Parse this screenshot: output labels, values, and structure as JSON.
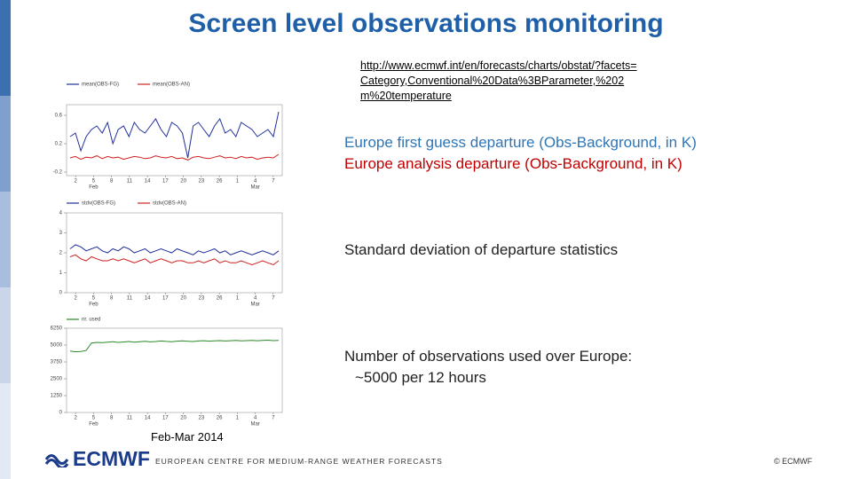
{
  "title": "Screen level observations monitoring",
  "link": "http://www.ecmwf.int/en/forecasts/charts/obstat/?facets=Category,Conventional%20Data%3BParameter,%202m%20temperature",
  "captions": [
    {
      "text": "Europe first guess departure (Obs-Background, in K)",
      "color": "#2e75b6"
    },
    {
      "text": "Europe analysis departure (Obs-Background, in K)",
      "color": "#c00000"
    },
    {
      "text": "Standard deviation of departure statistics",
      "color": "#222222"
    },
    {
      "text": "Number of observations used over Europe:",
      "color": "#222222"
    },
    {
      "text": "~5000 per 12 hours",
      "color": "#222222"
    }
  ],
  "period": "Feb-Mar 2014",
  "footer": {
    "logo": "ECMWF",
    "org": "EUROPEAN CENTRE FOR MEDIUM-RANGE WEATHER FORECASTS",
    "copyright": "© ECMWF"
  },
  "panels": [
    {
      "ylim": [
        -0.25,
        0.75
      ],
      "yticks": [
        -0.2,
        0.2,
        0.6
      ],
      "xticks": [
        "2",
        "5",
        "8",
        "11",
        "14",
        "17",
        "20",
        "23",
        "26",
        "1",
        "4",
        "7"
      ],
      "months": [
        "Feb",
        "Mar"
      ],
      "series": [
        {
          "name": "mean(OBS-FG)",
          "color": "#1f2f9a",
          "values": [
            0.3,
            0.35,
            0.1,
            0.3,
            0.4,
            0.45,
            0.35,
            0.5,
            0.2,
            0.4,
            0.45,
            0.3,
            0.5,
            0.4,
            0.35,
            0.45,
            0.55,
            0.4,
            0.3,
            0.5,
            0.45,
            0.35,
            0.0,
            0.45,
            0.5,
            0.4,
            0.3,
            0.45,
            0.55,
            0.35,
            0.4,
            0.3,
            0.5,
            0.45,
            0.4,
            0.3,
            0.35,
            0.4,
            0.3,
            0.65
          ]
        },
        {
          "name": "mean(OBS-AN)",
          "color": "#d02020",
          "values": [
            0.0,
            0.02,
            -0.02,
            0.01,
            0.0,
            0.03,
            -0.01,
            0.02,
            0.0,
            0.01,
            -0.02,
            0.0,
            0.02,
            0.01,
            -0.01,
            0.0,
            0.03,
            0.01,
            0.0,
            0.02,
            -0.01,
            0.0,
            -0.03,
            0.01,
            0.02,
            0.0,
            -0.01,
            0.01,
            0.03,
            0.0,
            0.01,
            -0.01,
            0.02,
            0.0,
            0.01,
            -0.02,
            0.0,
            0.01,
            0.0,
            0.05
          ]
        }
      ]
    },
    {
      "ylim": [
        0,
        4
      ],
      "yticks": [
        0,
        1,
        2,
        3,
        4
      ],
      "xticks": [
        "2",
        "5",
        "8",
        "11",
        "14",
        "17",
        "20",
        "23",
        "26",
        "1",
        "4",
        "7"
      ],
      "months": [
        "Feb",
        "Mar"
      ],
      "series": [
        {
          "name": "stdv(OBS-FG)",
          "color": "#1f2f9a",
          "values": [
            2.2,
            2.4,
            2.3,
            2.1,
            2.2,
            2.3,
            2.1,
            2.0,
            2.2,
            2.1,
            2.3,
            2.2,
            2.0,
            2.1,
            2.2,
            2.0,
            2.1,
            2.2,
            2.1,
            2.0,
            2.2,
            2.1,
            2.0,
            1.9,
            2.1,
            2.0,
            2.1,
            2.2,
            2.0,
            2.1,
            1.9,
            2.0,
            2.1,
            2.0,
            1.9,
            2.0,
            2.1,
            2.0,
            1.9,
            2.1
          ]
        },
        {
          "name": "stdv(OBS-AN)",
          "color": "#d02020",
          "values": [
            1.8,
            1.9,
            1.7,
            1.6,
            1.8,
            1.7,
            1.6,
            1.6,
            1.7,
            1.6,
            1.7,
            1.6,
            1.5,
            1.6,
            1.7,
            1.5,
            1.6,
            1.7,
            1.6,
            1.5,
            1.6,
            1.6,
            1.5,
            1.5,
            1.6,
            1.5,
            1.6,
            1.7,
            1.5,
            1.6,
            1.5,
            1.5,
            1.6,
            1.5,
            1.4,
            1.5,
            1.6,
            1.5,
            1.4,
            1.6
          ]
        }
      ]
    },
    {
      "ylim": [
        0,
        6250
      ],
      "yticks": [
        0,
        1250,
        2500,
        3750,
        5000,
        6250
      ],
      "xticks": [
        "2",
        "5",
        "8",
        "11",
        "14",
        "17",
        "20",
        "23",
        "26",
        "1",
        "4",
        "7"
      ],
      "months": [
        "Feb",
        "Mar"
      ],
      "series": [
        {
          "name": "nr. used",
          "color": "#2a8a2a",
          "values": [
            4550,
            4500,
            4520,
            4600,
            5150,
            5200,
            5180,
            5220,
            5250,
            5200,
            5230,
            5260,
            5220,
            5250,
            5280,
            5240,
            5260,
            5300,
            5270,
            5250,
            5290,
            5310,
            5280,
            5260,
            5300,
            5320,
            5290,
            5310,
            5330,
            5300,
            5320,
            5340,
            5310,
            5330,
            5350,
            5320,
            5340,
            5360,
            5330,
            5350
          ]
        }
      ]
    }
  ]
}
